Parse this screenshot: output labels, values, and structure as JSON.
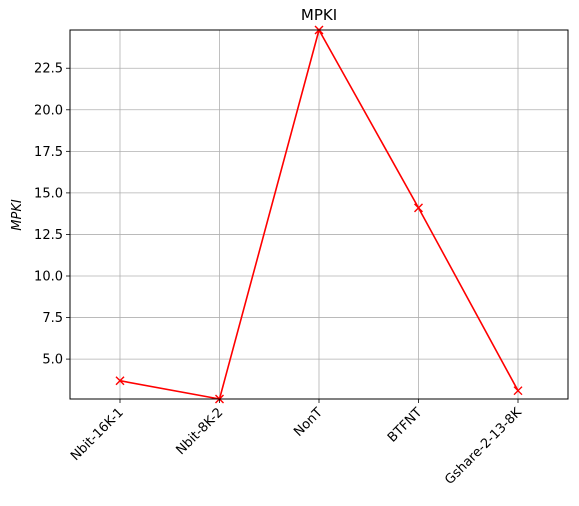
{
  "chart_data": {
    "type": "line",
    "title": "MPKI",
    "xlabel": "",
    "ylabel": "MPKI",
    "categories": [
      "Nbit-16K-1",
      "Nbit-8K-2",
      "NonT",
      "BTFNT",
      "Gshare-2-13-8K"
    ],
    "series": [
      {
        "values": [
          3.7,
          2.6,
          24.8,
          14.1,
          3.1
        ],
        "color": "#ff0000",
        "marker": "x"
      }
    ],
    "ylim": [
      2.6,
      24.8
    ],
    "yticks": [
      5.0,
      7.5,
      10.0,
      12.5,
      15.0,
      17.5,
      20.0,
      22.5
    ],
    "ytick_labels": [
      "5.0",
      "7.5",
      "10.0",
      "12.5",
      "15.0",
      "17.5",
      "20.0",
      "22.5"
    ],
    "xtick_rotation": 45,
    "grid": true,
    "legend": "none"
  }
}
